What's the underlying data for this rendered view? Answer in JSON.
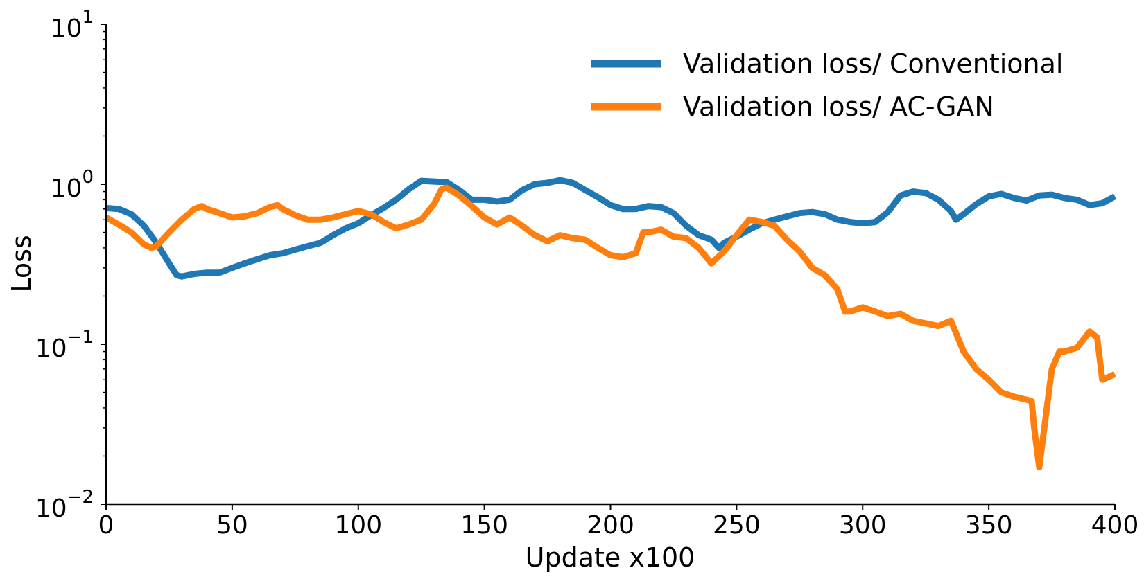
{
  "chart_data": {
    "type": "line",
    "xlabel": "Update x100",
    "ylabel": "Loss",
    "xlim": [
      0,
      400
    ],
    "ylim": [
      0.01,
      10
    ],
    "yscale": "log",
    "xticks": [
      0,
      50,
      100,
      150,
      200,
      250,
      300,
      350,
      400
    ],
    "yticks": [
      {
        "value": 0.01,
        "base": "10",
        "exp": "−2"
      },
      {
        "value": 0.1,
        "base": "10",
        "exp": "−1"
      },
      {
        "value": 1,
        "base": "10",
        "exp": "0"
      },
      {
        "value": 10,
        "base": "10",
        "exp": "1"
      }
    ],
    "grid": false,
    "legend_position": "top-right",
    "series": [
      {
        "name": "Validation loss/ Conventional",
        "color": "#1f77b4",
        "points": [
          [
            0,
            0.71
          ],
          [
            5,
            0.7
          ],
          [
            10,
            0.65
          ],
          [
            15,
            0.55
          ],
          [
            20,
            0.43
          ],
          [
            25,
            0.32
          ],
          [
            28,
            0.27
          ],
          [
            30,
            0.265
          ],
          [
            35,
            0.275
          ],
          [
            40,
            0.28
          ],
          [
            45,
            0.28
          ],
          [
            50,
            0.3
          ],
          [
            55,
            0.32
          ],
          [
            60,
            0.34
          ],
          [
            65,
            0.36
          ],
          [
            70,
            0.37
          ],
          [
            75,
            0.39
          ],
          [
            80,
            0.41
          ],
          [
            85,
            0.43
          ],
          [
            90,
            0.48
          ],
          [
            95,
            0.53
          ],
          [
            100,
            0.57
          ],
          [
            105,
            0.64
          ],
          [
            110,
            0.71
          ],
          [
            115,
            0.8
          ],
          [
            120,
            0.93
          ],
          [
            125,
            1.05
          ],
          [
            130,
            1.04
          ],
          [
            135,
            1.03
          ],
          [
            140,
            0.92
          ],
          [
            145,
            0.8
          ],
          [
            150,
            0.8
          ],
          [
            155,
            0.78
          ],
          [
            160,
            0.8
          ],
          [
            165,
            0.92
          ],
          [
            170,
            1.0
          ],
          [
            175,
            1.02
          ],
          [
            180,
            1.06
          ],
          [
            185,
            1.02
          ],
          [
            190,
            0.92
          ],
          [
            195,
            0.83
          ],
          [
            200,
            0.74
          ],
          [
            205,
            0.7
          ],
          [
            210,
            0.7
          ],
          [
            215,
            0.73
          ],
          [
            220,
            0.72
          ],
          [
            225,
            0.66
          ],
          [
            230,
            0.55
          ],
          [
            235,
            0.48
          ],
          [
            240,
            0.45
          ],
          [
            243,
            0.4
          ],
          [
            245,
            0.43
          ],
          [
            250,
            0.47
          ],
          [
            255,
            0.52
          ],
          [
            260,
            0.57
          ],
          [
            265,
            0.6
          ],
          [
            270,
            0.63
          ],
          [
            275,
            0.66
          ],
          [
            280,
            0.67
          ],
          [
            285,
            0.65
          ],
          [
            290,
            0.6
          ],
          [
            295,
            0.58
          ],
          [
            300,
            0.57
          ],
          [
            305,
            0.58
          ],
          [
            310,
            0.67
          ],
          [
            315,
            0.85
          ],
          [
            320,
            0.9
          ],
          [
            325,
            0.88
          ],
          [
            330,
            0.8
          ],
          [
            335,
            0.68
          ],
          [
            337,
            0.6
          ],
          [
            340,
            0.65
          ],
          [
            345,
            0.75
          ],
          [
            350,
            0.84
          ],
          [
            355,
            0.87
          ],
          [
            360,
            0.82
          ],
          [
            365,
            0.79
          ],
          [
            370,
            0.85
          ],
          [
            375,
            0.86
          ],
          [
            380,
            0.82
          ],
          [
            385,
            0.8
          ],
          [
            390,
            0.74
          ],
          [
            395,
            0.76
          ],
          [
            400,
            0.84
          ]
        ]
      },
      {
        "name": "Validation loss/ AC-GAN",
        "color": "#ff7f0e",
        "points": [
          [
            0,
            0.62
          ],
          [
            5,
            0.56
          ],
          [
            10,
            0.5
          ],
          [
            15,
            0.42
          ],
          [
            18,
            0.4
          ],
          [
            20,
            0.41
          ],
          [
            25,
            0.5
          ],
          [
            30,
            0.6
          ],
          [
            35,
            0.7
          ],
          [
            38,
            0.73
          ],
          [
            40,
            0.7
          ],
          [
            45,
            0.66
          ],
          [
            50,
            0.62
          ],
          [
            55,
            0.63
          ],
          [
            60,
            0.66
          ],
          [
            65,
            0.72
          ],
          [
            68,
            0.74
          ],
          [
            70,
            0.7
          ],
          [
            75,
            0.64
          ],
          [
            80,
            0.6
          ],
          [
            85,
            0.6
          ],
          [
            90,
            0.62
          ],
          [
            95,
            0.65
          ],
          [
            100,
            0.68
          ],
          [
            105,
            0.65
          ],
          [
            110,
            0.58
          ],
          [
            115,
            0.53
          ],
          [
            120,
            0.56
          ],
          [
            125,
            0.6
          ],
          [
            130,
            0.75
          ],
          [
            133,
            0.93
          ],
          [
            135,
            0.95
          ],
          [
            140,
            0.85
          ],
          [
            145,
            0.73
          ],
          [
            150,
            0.62
          ],
          [
            155,
            0.56
          ],
          [
            160,
            0.62
          ],
          [
            165,
            0.55
          ],
          [
            170,
            0.48
          ],
          [
            175,
            0.44
          ],
          [
            180,
            0.48
          ],
          [
            185,
            0.46
          ],
          [
            190,
            0.45
          ],
          [
            195,
            0.4
          ],
          [
            200,
            0.36
          ],
          [
            205,
            0.35
          ],
          [
            210,
            0.37
          ],
          [
            213,
            0.5
          ],
          [
            215,
            0.5
          ],
          [
            220,
            0.52
          ],
          [
            225,
            0.47
          ],
          [
            230,
            0.46
          ],
          [
            235,
            0.4
          ],
          [
            240,
            0.32
          ],
          [
            245,
            0.38
          ],
          [
            250,
            0.48
          ],
          [
            255,
            0.6
          ],
          [
            260,
            0.58
          ],
          [
            265,
            0.55
          ],
          [
            270,
            0.45
          ],
          [
            275,
            0.38
          ],
          [
            280,
            0.3
          ],
          [
            285,
            0.27
          ],
          [
            290,
            0.22
          ],
          [
            293,
            0.16
          ],
          [
            295,
            0.16
          ],
          [
            300,
            0.17
          ],
          [
            305,
            0.16
          ],
          [
            310,
            0.15
          ],
          [
            315,
            0.155
          ],
          [
            320,
            0.14
          ],
          [
            325,
            0.135
          ],
          [
            330,
            0.13
          ],
          [
            335,
            0.14
          ],
          [
            340,
            0.09
          ],
          [
            345,
            0.07
          ],
          [
            350,
            0.06
          ],
          [
            355,
            0.05
          ],
          [
            360,
            0.047
          ],
          [
            365,
            0.045
          ],
          [
            367,
            0.044
          ],
          [
            368,
            0.03
          ],
          [
            370,
            0.017
          ],
          [
            372,
            0.03
          ],
          [
            375,
            0.07
          ],
          [
            378,
            0.09
          ],
          [
            380,
            0.09
          ],
          [
            385,
            0.095
          ],
          [
            390,
            0.12
          ],
          [
            393,
            0.11
          ],
          [
            395,
            0.06
          ],
          [
            400,
            0.065
          ]
        ]
      }
    ]
  }
}
